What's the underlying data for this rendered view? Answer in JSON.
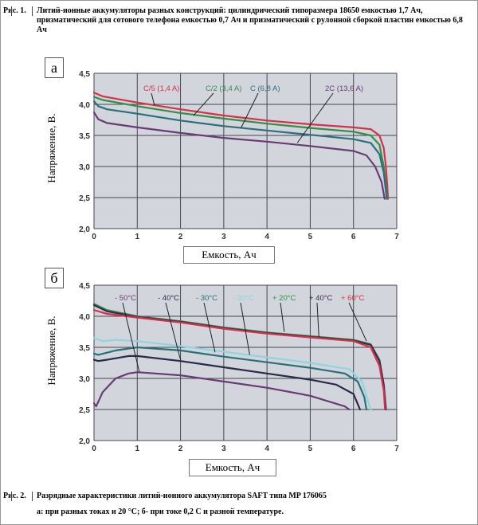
{
  "captions": {
    "fig1_label": "Рис. 1.",
    "fig1_text": "Литий-ионные аккумуляторы разных конструкций: цилиндрический типоразмера 18650 емкостью 1,7 Ач, призматический  для сотового телефона емкостью 0,7 Ач и призматический с рулонной сборкой пластин емкостью 6,8 Ач",
    "fig2_label": "Рис. 2.",
    "fig2_text_1": "Разрядные характеристики литий-ионного аккумулятора SAFT типа MP 176065",
    "fig2_text_2": "а: при разных токах и 20 °С; б- при токе 0,2 С и разной  температуре."
  },
  "colors": {
    "plot_bg": "#d3d5dd",
    "grid": "#44464e",
    "red": "#d8304a",
    "green": "#2f9146",
    "teal": "#2a6f7c",
    "purple": "#6a3a75",
    "cyan": "#8fd5dd"
  },
  "chart_data": [
    {
      "type": "line",
      "panel_label": "а",
      "xlabel": "Емкость, Ач",
      "ylabel": "Напряжение, В.",
      "xlim": [
        0,
        7
      ],
      "ylim": [
        2.0,
        4.5
      ],
      "x_ticks": [
        "0",
        "1",
        "2",
        "3",
        "4",
        "5",
        "6",
        "7"
      ],
      "y_ticks": [
        "2,0",
        "2,5",
        "3,0",
        "3,5",
        "4,0",
        "4,5"
      ],
      "grid": true,
      "series": [
        {
          "name": "C/5 (1,4 A)",
          "color": "#d8304a",
          "points": [
            [
              0,
              4.19
            ],
            [
              0.2,
              4.13
            ],
            [
              1,
              4.03
            ],
            [
              2,
              3.92
            ],
            [
              3,
              3.82
            ],
            [
              4,
              3.74
            ],
            [
              5,
              3.68
            ],
            [
              6,
              3.63
            ],
            [
              6.4,
              3.6
            ],
            [
              6.6,
              3.5
            ],
            [
              6.7,
              3.3
            ],
            [
              6.75,
              3.0
            ],
            [
              6.78,
              2.7
            ],
            [
              6.8,
              2.48
            ]
          ]
        },
        {
          "name": "C/2 (3,4 A)",
          "color": "#2f9146",
          "points": [
            [
              0,
              4.12
            ],
            [
              0.2,
              4.07
            ],
            [
              1,
              3.97
            ],
            [
              2,
              3.86
            ],
            [
              3,
              3.77
            ],
            [
              4,
              3.69
            ],
            [
              5,
              3.62
            ],
            [
              6,
              3.56
            ],
            [
              6.4,
              3.5
            ],
            [
              6.6,
              3.35
            ],
            [
              6.7,
              3.0
            ],
            [
              6.75,
              2.7
            ],
            [
              6.78,
              2.48
            ]
          ]
        },
        {
          "name": "C (6,8 A)",
          "color": "#2a6f7c",
          "points": [
            [
              0,
              4.05
            ],
            [
              0.1,
              3.97
            ],
            [
              0.3,
              3.92
            ],
            [
              1,
              3.85
            ],
            [
              2,
              3.74
            ],
            [
              3,
              3.65
            ],
            [
              4,
              3.58
            ],
            [
              5,
              3.51
            ],
            [
              6,
              3.44
            ],
            [
              6.4,
              3.38
            ],
            [
              6.6,
              3.2
            ],
            [
              6.7,
              2.9
            ],
            [
              6.75,
              2.6
            ],
            [
              6.77,
              2.48
            ]
          ]
        },
        {
          "name": "2C (13,6 A)",
          "color": "#6a3a75",
          "points": [
            [
              0,
              3.87
            ],
            [
              0.1,
              3.76
            ],
            [
              0.3,
              3.7
            ],
            [
              1,
              3.63
            ],
            [
              2,
              3.54
            ],
            [
              3,
              3.46
            ],
            [
              4,
              3.4
            ],
            [
              5,
              3.33
            ],
            [
              6,
              3.25
            ],
            [
              6.3,
              3.18
            ],
            [
              6.5,
              3.0
            ],
            [
              6.65,
              2.75
            ],
            [
              6.72,
              2.48
            ]
          ]
        }
      ]
    },
    {
      "type": "line",
      "panel_label": "б",
      "xlabel": "Емкость, Ач",
      "ylabel": "Напряжение, В.",
      "xlim": [
        0,
        7
      ],
      "ylim": [
        2.0,
        4.5
      ],
      "x_ticks": [
        "0",
        "1",
        "2",
        "3",
        "4",
        "5",
        "6",
        "7"
      ],
      "y_ticks": [
        "2,0",
        "2,5",
        "3,0",
        "3,5",
        "4,0",
        "4,5"
      ],
      "grid": true,
      "series": [
        {
          "name": "- 50°C",
          "color": "#6a3a75",
          "points": [
            [
              0,
              2.6
            ],
            [
              0.05,
              2.55
            ],
            [
              0.2,
              2.78
            ],
            [
              0.5,
              3.0
            ],
            [
              0.8,
              3.08
            ],
            [
              1,
              3.1
            ],
            [
              2,
              3.05
            ],
            [
              3,
              2.95
            ],
            [
              4,
              2.85
            ],
            [
              5,
              2.72
            ],
            [
              5.8,
              2.55
            ],
            [
              5.9,
              2.5
            ]
          ]
        },
        {
          "name": "- 40°C",
          "color": "#2a2a4a",
          "points": [
            [
              0,
              3.3
            ],
            [
              0.1,
              3.28
            ],
            [
              0.3,
              3.3
            ],
            [
              0.8,
              3.36
            ],
            [
              1,
              3.36
            ],
            [
              2,
              3.28
            ],
            [
              3,
              3.18
            ],
            [
              4,
              3.08
            ],
            [
              5,
              2.98
            ],
            [
              5.6,
              2.9
            ],
            [
              6.0,
              2.75
            ],
            [
              6.15,
              2.5
            ]
          ]
        },
        {
          "name": "- 30°C",
          "color": "#2a6f7c",
          "points": [
            [
              0,
              3.4
            ],
            [
              0.1,
              3.38
            ],
            [
              0.5,
              3.45
            ],
            [
              1,
              3.5
            ],
            [
              2,
              3.45
            ],
            [
              3,
              3.35
            ],
            [
              4,
              3.26
            ],
            [
              5,
              3.17
            ],
            [
              5.8,
              3.08
            ],
            [
              6.1,
              2.95
            ],
            [
              6.25,
              2.7
            ],
            [
              6.3,
              2.5
            ]
          ]
        },
        {
          "name": "- 20°C",
          "color": "#8fd5dd",
          "points": [
            [
              0,
              3.65
            ],
            [
              0.2,
              3.6
            ],
            [
              0.5,
              3.62
            ],
            [
              1,
              3.6
            ],
            [
              2,
              3.52
            ],
            [
              3,
              3.43
            ],
            [
              4,
              3.34
            ],
            [
              5,
              3.25
            ],
            [
              5.9,
              3.15
            ],
            [
              6.2,
              2.95
            ],
            [
              6.35,
              2.6
            ],
            [
              6.4,
              2.5
            ]
          ]
        },
        {
          "name": "+ 20°C",
          "color": "#2f9146",
          "points": [
            [
              0,
              4.2
            ],
            [
              0.3,
              4.1
            ],
            [
              1,
              4.0
            ],
            [
              2,
              3.92
            ],
            [
              3,
              3.82
            ],
            [
              4,
              3.74
            ],
            [
              5,
              3.68
            ],
            [
              6,
              3.62
            ],
            [
              6.4,
              3.55
            ],
            [
              6.6,
              3.3
            ],
            [
              6.7,
              2.9
            ],
            [
              6.75,
              2.5
            ]
          ]
        },
        {
          "name": "+ 40°C",
          "color": "#3a2a50",
          "points": [
            [
              0,
              4.18
            ],
            [
              0.3,
              4.08
            ],
            [
              1,
              3.99
            ],
            [
              2,
              3.91
            ],
            [
              3,
              3.81
            ],
            [
              4,
              3.73
            ],
            [
              5,
              3.67
            ],
            [
              6,
              3.61
            ],
            [
              6.4,
              3.54
            ],
            [
              6.6,
              3.28
            ],
            [
              6.7,
              2.9
            ],
            [
              6.75,
              2.5
            ]
          ]
        },
        {
          "name": "+ 60°C",
          "color": "#d8304a",
          "points": [
            [
              0,
              4.1
            ],
            [
              0.3,
              4.04
            ],
            [
              1,
              3.98
            ],
            [
              2,
              3.9
            ],
            [
              3,
              3.8
            ],
            [
              4,
              3.72
            ],
            [
              5,
              3.66
            ],
            [
              6,
              3.6
            ],
            [
              6.4,
              3.5
            ],
            [
              6.6,
              3.2
            ],
            [
              6.7,
              2.8
            ],
            [
              6.73,
              2.5
            ]
          ]
        }
      ]
    }
  ]
}
